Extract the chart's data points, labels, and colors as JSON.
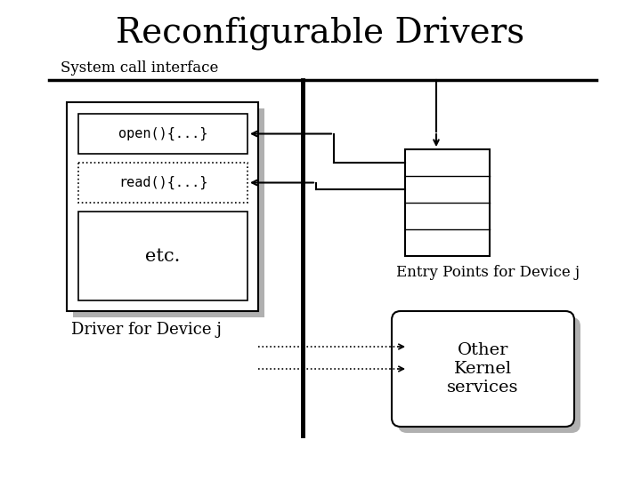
{
  "title": "Reconfigurable Drivers",
  "title_fontsize": 28,
  "syscall_label": "System call interface",
  "syscall_label_fontsize": 12,
  "open_label": "open(){...}",
  "read_label": "read(){...}",
  "etc_label": "etc.",
  "driver_label": "Driver for Device j",
  "entry_label": "Entry Points for Device j",
  "kernel_label": "Other\nKernel\nservices",
  "bg_color": "#ffffff",
  "shadow_color": "#b0b0b0"
}
